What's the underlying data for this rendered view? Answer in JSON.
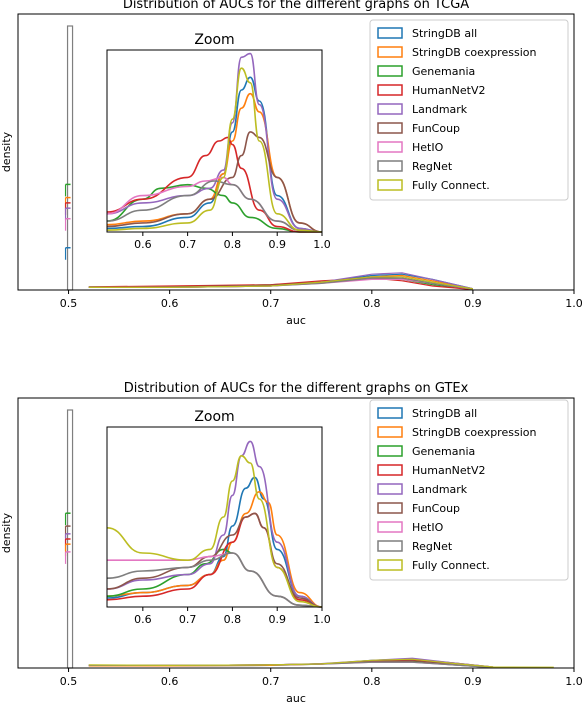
{
  "legend_labels": [
    "StringDB all",
    "StringDB coexpression",
    "Genemania",
    "HumanNetV2",
    "Landmark",
    "FunCoup",
    "HetIO",
    "RegNet",
    "Fully Connect."
  ],
  "colors": [
    "#1f77b4",
    "#ff7f0e",
    "#2ca02c",
    "#d62728",
    "#9467bd",
    "#8c564b",
    "#e377c2",
    "#7f7f7f",
    "#bcbd22"
  ],
  "chart_data": [
    {
      "type": "line",
      "title": "Distribution of AUCs for the different graphs on TCGA",
      "xlabel": "auc",
      "ylabel": "density",
      "xlim": [
        0.45,
        1.0
      ],
      "xticks": [
        "0.5",
        "0.6",
        "0.7",
        "0.8",
        "0.9",
        "1.0"
      ],
      "legend_position": "upper right",
      "note": "step histograms of AUC; tall spike at auc=0.5",
      "spike_x": 0.5,
      "spike_levels": {
        "RegNet": 1.0,
        "Genemania": 0.4,
        "StringDB coexpression": 0.35,
        "HumanNetV2": 0.33,
        "Landmark": 0.31,
        "HetIO": 0.27,
        "StringDB all": 0.16
      },
      "series": [
        {
          "name": "StringDB all",
          "x": [
            0.52,
            0.6,
            0.7,
            0.75,
            0.8,
            0.83,
            0.86,
            0.9
          ],
          "y": [
            0.01,
            0.01,
            0.015,
            0.03,
            0.055,
            0.06,
            0.04,
            0.005
          ]
        },
        {
          "name": "StringDB coexpression",
          "x": [
            0.52,
            0.6,
            0.7,
            0.75,
            0.8,
            0.83,
            0.86,
            0.9
          ],
          "y": [
            0.01,
            0.01,
            0.015,
            0.03,
            0.05,
            0.055,
            0.035,
            0.005
          ]
        },
        {
          "name": "Genemania",
          "x": [
            0.52,
            0.6,
            0.7,
            0.75,
            0.8,
            0.83,
            0.86,
            0.9
          ],
          "y": [
            0.012,
            0.012,
            0.02,
            0.03,
            0.045,
            0.04,
            0.02,
            0.003
          ]
        },
        {
          "name": "HumanNetV2",
          "x": [
            0.52,
            0.6,
            0.7,
            0.75,
            0.8,
            0.83,
            0.86,
            0.9
          ],
          "y": [
            0.012,
            0.015,
            0.02,
            0.035,
            0.045,
            0.035,
            0.015,
            0.002
          ]
        },
        {
          "name": "Landmark",
          "x": [
            0.52,
            0.6,
            0.7,
            0.75,
            0.8,
            0.83,
            0.86,
            0.9
          ],
          "y": [
            0.01,
            0.01,
            0.015,
            0.03,
            0.06,
            0.065,
            0.04,
            0.005
          ]
        },
        {
          "name": "FunCoup",
          "x": [
            0.52,
            0.6,
            0.7,
            0.75,
            0.8,
            0.83,
            0.86,
            0.9
          ],
          "y": [
            0.01,
            0.012,
            0.018,
            0.03,
            0.05,
            0.045,
            0.025,
            0.004
          ]
        },
        {
          "name": "HetIO",
          "x": [
            0.52,
            0.6,
            0.7,
            0.75,
            0.8,
            0.83,
            0.86,
            0.9
          ],
          "y": [
            0.01,
            0.01,
            0.015,
            0.025,
            0.04,
            0.04,
            0.025,
            0.003
          ]
        },
        {
          "name": "RegNet",
          "x": [
            0.52,
            0.6,
            0.7,
            0.75,
            0.8,
            0.83,
            0.86,
            0.9
          ],
          "y": [
            0.01,
            0.01,
            0.015,
            0.025,
            0.045,
            0.045,
            0.025,
            0.003
          ]
        },
        {
          "name": "Fully Connect.",
          "x": [
            0.52,
            0.6,
            0.7,
            0.75,
            0.8,
            0.83,
            0.86,
            0.9
          ],
          "y": [
            0.01,
            0.01,
            0.015,
            0.03,
            0.05,
            0.05,
            0.03,
            0.004
          ]
        }
      ],
      "inset": {
        "title": "Zoom",
        "xlim": [
          0.52,
          1.0
        ],
        "ylim": [
          0,
          1.0
        ],
        "xticks": [
          "0.6",
          "0.7",
          "0.8",
          "0.9",
          "1.0"
        ],
        "series": [
          {
            "name": "StringDB all",
            "x": [
              0.52,
              0.6,
              0.7,
              0.75,
              0.78,
              0.8,
              0.82,
              0.84,
              0.86,
              0.9,
              0.95,
              1.0
            ],
            "y": [
              0.02,
              0.03,
              0.08,
              0.16,
              0.32,
              0.55,
              0.78,
              0.85,
              0.72,
              0.2,
              0.02,
              0.0
            ]
          },
          {
            "name": "StringDB coexpression",
            "x": [
              0.52,
              0.6,
              0.7,
              0.75,
              0.78,
              0.8,
              0.82,
              0.84,
              0.86,
              0.9,
              0.95,
              1.0
            ],
            "y": [
              0.04,
              0.06,
              0.1,
              0.18,
              0.32,
              0.5,
              0.68,
              0.76,
              0.66,
              0.3,
              0.05,
              0.0
            ]
          },
          {
            "name": "Genemania",
            "x": [
              0.52,
              0.6,
              0.64,
              0.7,
              0.74,
              0.78,
              0.8,
              0.84,
              0.9,
              0.95,
              1.0
            ],
            "y": [
              0.06,
              0.18,
              0.24,
              0.26,
              0.24,
              0.2,
              0.16,
              0.08,
              0.02,
              0.0,
              0.0
            ]
          },
          {
            "name": "HumanNetV2",
            "x": [
              0.52,
              0.6,
              0.7,
              0.74,
              0.77,
              0.79,
              0.8,
              0.82,
              0.86,
              0.9,
              0.95,
              1.0
            ],
            "y": [
              0.11,
              0.18,
              0.3,
              0.42,
              0.5,
              0.52,
              0.48,
              0.35,
              0.12,
              0.03,
              0.0,
              0.0
            ]
          },
          {
            "name": "Landmark",
            "x": [
              0.52,
              0.6,
              0.7,
              0.75,
              0.78,
              0.8,
              0.82,
              0.84,
              0.86,
              0.9,
              0.95,
              1.0
            ],
            "y": [
              0.1,
              0.16,
              0.2,
              0.24,
              0.34,
              0.6,
              0.96,
              0.98,
              0.7,
              0.18,
              0.02,
              0.0
            ]
          },
          {
            "name": "FunCoup",
            "x": [
              0.52,
              0.6,
              0.7,
              0.75,
              0.8,
              0.82,
              0.84,
              0.86,
              0.9,
              0.95,
              1.0
            ],
            "y": [
              0.03,
              0.05,
              0.1,
              0.18,
              0.3,
              0.42,
              0.55,
              0.52,
              0.3,
              0.05,
              0.0
            ]
          },
          {
            "name": "HetIO",
            "x": [
              0.52,
              0.6,
              0.7,
              0.74,
              0.78,
              0.8,
              0.84,
              0.9,
              0.95,
              1.0
            ],
            "y": [
              0.1,
              0.2,
              0.25,
              0.28,
              0.3,
              0.26,
              0.18,
              0.06,
              0.01,
              0.0
            ]
          },
          {
            "name": "RegNet",
            "x": [
              0.52,
              0.6,
              0.7,
              0.76,
              0.8,
              0.84,
              0.9,
              0.95,
              1.0
            ],
            "y": [
              0.06,
              0.12,
              0.2,
              0.28,
              0.26,
              0.18,
              0.06,
              0.01,
              0.0
            ]
          },
          {
            "name": "Fully Connect.",
            "x": [
              0.52,
              0.6,
              0.7,
              0.75,
              0.78,
              0.8,
              0.82,
              0.84,
              0.86,
              0.9,
              0.95,
              1.0
            ],
            "y": [
              0.01,
              0.02,
              0.05,
              0.12,
              0.3,
              0.62,
              0.9,
              0.82,
              0.5,
              0.1,
              0.01,
              0.0
            ]
          }
        ]
      }
    },
    {
      "type": "line",
      "title": "Distribution of AUCs for the different graphs on GTEx",
      "xlabel": "auc",
      "ylabel": "density",
      "xlim": [
        0.45,
        1.0
      ],
      "xticks": [
        "0.5",
        "0.6",
        "0.7",
        "0.8",
        "0.9",
        "1.0"
      ],
      "legend_position": "upper right",
      "note": "step histograms of AUC; tall spike at auc=0.5",
      "spike_x": 0.5,
      "spike_levels": {
        "RegNet": 1.0,
        "Genemania": 0.6,
        "FunCoup": 0.55,
        "Landmark": 0.52,
        "HumanNetV2": 0.5,
        "StringDB coexpression": 0.48,
        "HetIO": 0.45
      },
      "series": [
        {
          "name": "StringDB all",
          "x": [
            0.52,
            0.6,
            0.7,
            0.75,
            0.8,
            0.84,
            0.88,
            0.92
          ],
          "y": [
            0.008,
            0.008,
            0.01,
            0.015,
            0.03,
            0.035,
            0.02,
            0.004
          ]
        },
        {
          "name": "StringDB coexpression",
          "x": [
            0.52,
            0.6,
            0.7,
            0.75,
            0.8,
            0.84,
            0.88,
            0.92
          ],
          "y": [
            0.008,
            0.008,
            0.01,
            0.015,
            0.028,
            0.033,
            0.02,
            0.004
          ]
        },
        {
          "name": "Genemania",
          "x": [
            0.52,
            0.6,
            0.7,
            0.75,
            0.8,
            0.84,
            0.88,
            0.92
          ],
          "y": [
            0.01,
            0.01,
            0.012,
            0.016,
            0.025,
            0.025,
            0.012,
            0.002
          ]
        },
        {
          "name": "HumanNetV2",
          "x": [
            0.52,
            0.6,
            0.7,
            0.75,
            0.8,
            0.84,
            0.88,
            0.92
          ],
          "y": [
            0.01,
            0.01,
            0.012,
            0.016,
            0.026,
            0.03,
            0.015,
            0.003
          ]
        },
        {
          "name": "Landmark",
          "x": [
            0.52,
            0.6,
            0.7,
            0.75,
            0.8,
            0.84,
            0.88,
            0.92
          ],
          "y": [
            0.01,
            0.01,
            0.012,
            0.017,
            0.03,
            0.038,
            0.02,
            0.004
          ]
        },
        {
          "name": "FunCoup",
          "x": [
            0.52,
            0.6,
            0.7,
            0.75,
            0.8,
            0.84,
            0.88,
            0.92
          ],
          "y": [
            0.01,
            0.01,
            0.012,
            0.016,
            0.026,
            0.028,
            0.015,
            0.003
          ]
        },
        {
          "name": "HetIO",
          "x": [
            0.52,
            0.6,
            0.7,
            0.75,
            0.8,
            0.84,
            0.88,
            0.92
          ],
          "y": [
            0.01,
            0.01,
            0.012,
            0.015,
            0.022,
            0.022,
            0.012,
            0.002
          ]
        },
        {
          "name": "RegNet",
          "x": [
            0.52,
            0.6,
            0.7,
            0.75,
            0.8,
            0.84,
            0.88,
            0.92
          ],
          "y": [
            0.01,
            0.01,
            0.012,
            0.015,
            0.022,
            0.022,
            0.012,
            0.002
          ]
        },
        {
          "name": "Fully Connect.",
          "x": [
            0.52,
            0.6,
            0.7,
            0.75,
            0.8,
            0.84,
            0.88,
            0.92,
            0.98
          ],
          "y": [
            0.012,
            0.01,
            0.012,
            0.016,
            0.03,
            0.034,
            0.018,
            0.004,
            0.003
          ]
        }
      ],
      "inset": {
        "title": "Zoom",
        "xlim": [
          0.52,
          1.0
        ],
        "ylim": [
          0,
          1.0
        ],
        "xticks": [
          "0.6",
          "0.7",
          "0.8",
          "0.9",
          "1.0"
        ],
        "series": [
          {
            "name": "StringDB all",
            "x": [
              0.52,
              0.6,
              0.7,
              0.75,
              0.78,
              0.8,
              0.83,
              0.85,
              0.87,
              0.9,
              0.95,
              1.0
            ],
            "y": [
              0.05,
              0.08,
              0.12,
              0.18,
              0.28,
              0.45,
              0.66,
              0.72,
              0.6,
              0.32,
              0.06,
              0.0
            ]
          },
          {
            "name": "StringDB coexpression",
            "x": [
              0.52,
              0.6,
              0.7,
              0.75,
              0.78,
              0.8,
              0.83,
              0.86,
              0.88,
              0.9,
              0.95,
              1.0
            ],
            "y": [
              0.06,
              0.08,
              0.12,
              0.18,
              0.26,
              0.36,
              0.52,
              0.64,
              0.58,
              0.4,
              0.08,
              0.0
            ]
          },
          {
            "name": "Genemania",
            "x": [
              0.52,
              0.6,
              0.7,
              0.74,
              0.78,
              0.8,
              0.84,
              0.9,
              0.95,
              1.0
            ],
            "y": [
              0.06,
              0.1,
              0.18,
              0.24,
              0.32,
              0.3,
              0.2,
              0.06,
              0.01,
              0.0
            ]
          },
          {
            "name": "HumanNetV2",
            "x": [
              0.52,
              0.6,
              0.7,
              0.75,
              0.8,
              0.83,
              0.85,
              0.87,
              0.9,
              0.95,
              1.0
            ],
            "y": [
              0.04,
              0.06,
              0.1,
              0.18,
              0.36,
              0.5,
              0.52,
              0.44,
              0.22,
              0.04,
              0.0
            ]
          },
          {
            "name": "Landmark",
            "x": [
              0.52,
              0.6,
              0.7,
              0.75,
              0.78,
              0.8,
              0.82,
              0.84,
              0.86,
              0.9,
              0.95,
              1.0
            ],
            "y": [
              0.1,
              0.15,
              0.18,
              0.24,
              0.4,
              0.62,
              0.84,
              0.92,
              0.78,
              0.36,
              0.06,
              0.0
            ]
          },
          {
            "name": "FunCoup",
            "x": [
              0.52,
              0.6,
              0.7,
              0.75,
              0.8,
              0.83,
              0.85,
              0.87,
              0.9,
              0.95,
              1.0
            ],
            "y": [
              0.1,
              0.16,
              0.22,
              0.28,
              0.4,
              0.5,
              0.52,
              0.44,
              0.24,
              0.05,
              0.0
            ]
          },
          {
            "name": "HetIO",
            "x": [
              0.52,
              0.6,
              0.7,
              0.75,
              0.8,
              0.84,
              0.9,
              0.95,
              1.0
            ],
            "y": [
              0.26,
              0.26,
              0.26,
              0.28,
              0.3,
              0.2,
              0.06,
              0.01,
              0.0
            ]
          },
          {
            "name": "RegNet",
            "x": [
              0.52,
              0.6,
              0.7,
              0.75,
              0.8,
              0.84,
              0.9,
              0.95,
              1.0
            ],
            "y": [
              0.16,
              0.2,
              0.22,
              0.26,
              0.3,
              0.2,
              0.06,
              0.01,
              0.0
            ]
          },
          {
            "name": "Fully Connect.",
            "x": [
              0.52,
              0.6,
              0.7,
              0.75,
              0.78,
              0.8,
              0.82,
              0.84,
              0.86,
              0.9,
              0.95,
              1.0
            ],
            "y": [
              0.44,
              0.3,
              0.26,
              0.32,
              0.5,
              0.7,
              0.84,
              0.8,
              0.6,
              0.22,
              0.03,
              0.0
            ]
          }
        ]
      }
    }
  ]
}
